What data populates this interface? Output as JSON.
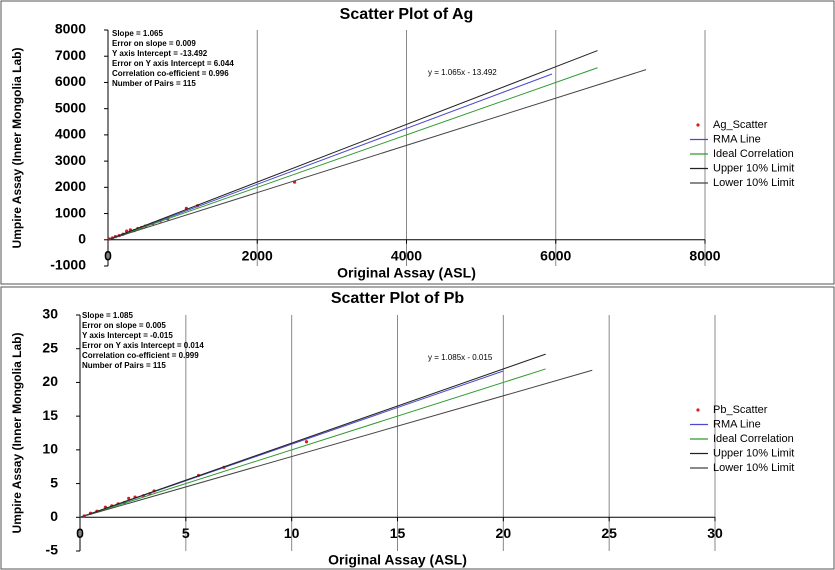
{
  "chart_data": [
    {
      "type": "scatter",
      "title": "Scatter Plot of Ag",
      "x_label": "Original Assay (ASL)",
      "y_label": "Umpire Assay (Inner Mongolia Lab)",
      "annotations": [
        "Slope = 1.065",
        "Error on slope = 0.009",
        "Y axis Intercept = -13.492",
        "Error on Y axis Intercept = 6.044",
        "Correlation co-efficient = 0.996",
        "Number of Pairs = 115"
      ],
      "equation": "y = 1.065x - 13.492",
      "xlim": [
        0,
        8000
      ],
      "xticks": [
        0,
        2000,
        4000,
        6000,
        8000
      ],
      "ylim": [
        -1000,
        8000
      ],
      "yticks": [
        -1000,
        0,
        1000,
        2000,
        3000,
        4000,
        5000,
        6000,
        7000,
        8000
      ],
      "grid": "x",
      "series": [
        {
          "name": "Ag_Scatter",
          "kind": "points",
          "color": "#d62020",
          "x": [
            20,
            60,
            100,
            150,
            200,
            250,
            300,
            350,
            400,
            450,
            500,
            600,
            700,
            800,
            1050,
            1200,
            2500
          ],
          "values": [
            30,
            70,
            120,
            160,
            210,
            330,
            380,
            350,
            430,
            470,
            520,
            620,
            720,
            800,
            1200,
            1300,
            2200
          ]
        },
        {
          "name": "RMA Line",
          "kind": "line",
          "color": "#4a4ad0",
          "x": [
            0,
            5950
          ],
          "values": [
            -13,
            6323
          ]
        },
        {
          "name": "Ideal Correlation",
          "kind": "line",
          "color": "#2f9a2f",
          "x": [
            0,
            6560
          ],
          "values": [
            0,
            6560
          ]
        },
        {
          "name": "Upper 10% Limit",
          "kind": "line",
          "color": "#222222",
          "x": [
            0,
            6560
          ],
          "values": [
            0,
            7216
          ]
        },
        {
          "name": "Lower 10% Limit",
          "kind": "line",
          "color": "#444444",
          "x": [
            0,
            7210
          ],
          "values": [
            0,
            6489
          ]
        }
      ]
    },
    {
      "type": "scatter",
      "title": "Scatter Plot of Pb",
      "x_label": "Original Assay (ASL)",
      "y_label": "Umpire Assay (Inner Mongolia Lab)",
      "annotations": [
        "Slope = 1.085",
        "Error on slope = 0.005",
        "Y axis Intercept = -0.015",
        "Error on Y axis Intercept = 0.014",
        "Correlation co-efficient = 0.999",
        "Number of Pairs = 115"
      ],
      "equation": "y = 1.085x - 0.015",
      "xlim": [
        0,
        30
      ],
      "xticks": [
        0,
        5,
        10,
        15,
        20,
        25,
        30
      ],
      "ylim": [
        -5,
        30
      ],
      "yticks": [
        -5,
        0,
        5,
        10,
        15,
        20,
        25,
        30
      ],
      "grid": "x",
      "series": [
        {
          "name": "Pb_Scatter",
          "kind": "points",
          "color": "#d62020",
          "x": [
            0.2,
            0.5,
            0.8,
            1.2,
            1.5,
            1.8,
            2.1,
            2.3,
            2.6,
            3.0,
            3.3,
            3.5,
            5.6,
            6.8,
            10.7
          ],
          "values": [
            0.2,
            0.6,
            0.9,
            1.5,
            1.7,
            2.0,
            2.2,
            2.8,
            3.0,
            3.2,
            3.5,
            3.9,
            6.2,
            7.4,
            11.2
          ]
        },
        {
          "name": "RMA Line",
          "kind": "line",
          "color": "#4a4ad0",
          "x": [
            0,
            20
          ],
          "values": [
            -0.015,
            21.7
          ]
        },
        {
          "name": "Ideal Correlation",
          "kind": "line",
          "color": "#2f9a2f",
          "x": [
            0,
            22
          ],
          "values": [
            0,
            22
          ]
        },
        {
          "name": "Upper 10% Limit",
          "kind": "line",
          "color": "#222222",
          "x": [
            0,
            22
          ],
          "values": [
            0,
            24.2
          ]
        },
        {
          "name": "Lower 10% Limit",
          "kind": "line",
          "color": "#444444",
          "x": [
            0,
            24.2
          ],
          "values": [
            0,
            21.8
          ]
        }
      ]
    }
  ]
}
